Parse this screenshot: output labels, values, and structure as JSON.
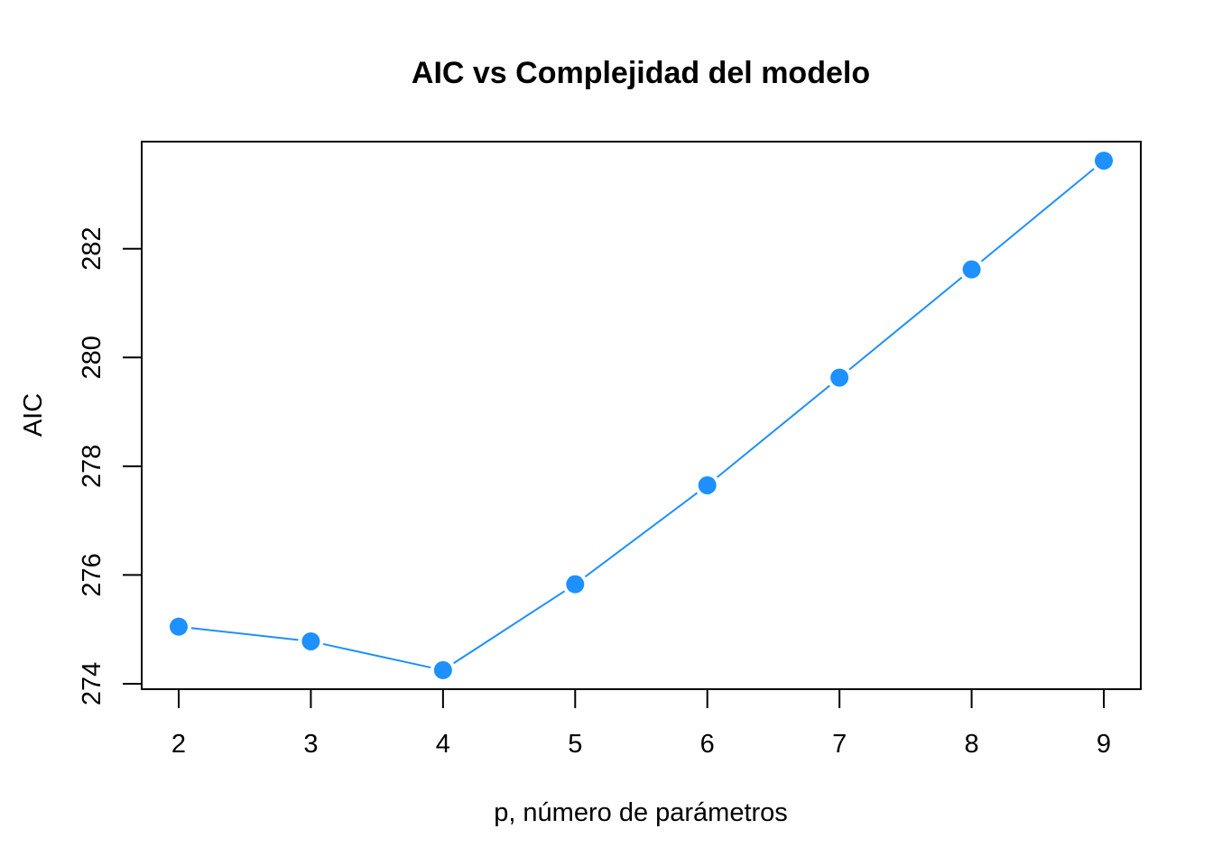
{
  "chart_data": {
    "type": "line",
    "title": "AIC vs Complejidad del modelo",
    "xlabel": "p, número de parámetros",
    "ylabel": "AIC",
    "x": [
      2,
      3,
      4,
      5,
      6,
      7,
      8,
      9
    ],
    "series": [
      {
        "values": [
          275.05,
          274.78,
          274.25,
          275.83,
          277.65,
          279.63,
          281.62,
          283.62
        ]
      }
    ],
    "x_ticks": [
      "2",
      "3",
      "4",
      "5",
      "6",
      "7",
      "8",
      "9"
    ],
    "y_ticks": [
      "274",
      "276",
      "278",
      "280",
      "282"
    ],
    "xlim": [
      1.72,
      9.28
    ],
    "ylim": [
      273.9,
      283.97
    ],
    "line_color": "#1E90FF",
    "marker_color": "#1E90FF",
    "grid": false,
    "legend": "none"
  }
}
